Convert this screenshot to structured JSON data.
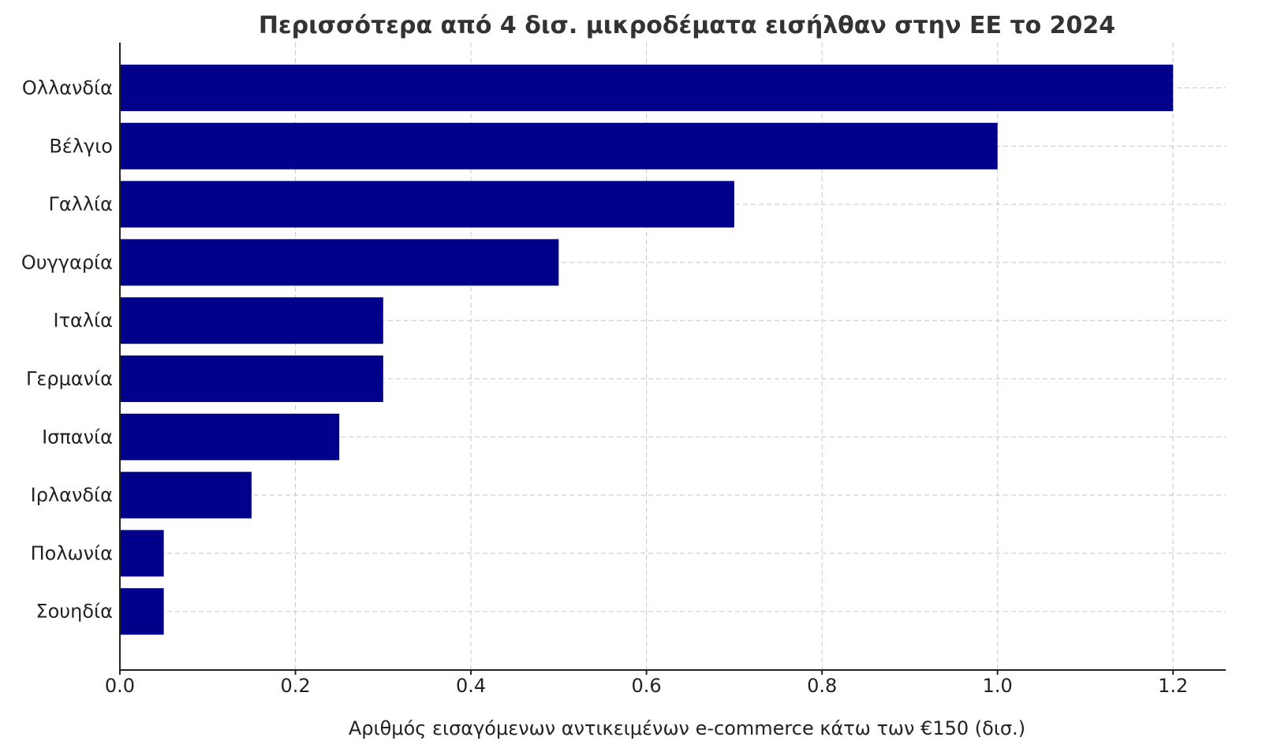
{
  "chart_data": {
    "type": "bar",
    "orientation": "horizontal",
    "title": "Περισσότερα από 4 δισ. μικροδέματα εισήλθαν στην ΕΕ το 2024",
    "xlabel": "Αριθμός εισαγόμενων αντικειμένων e-commerce κάτω των €150 (δισ.)",
    "ylabel": "",
    "categories": [
      "Ολλανδία",
      "Βέλγιο",
      "Γαλλία",
      "Ουγγαρία",
      "Ιταλία",
      "Γερμανία",
      "Ισπανία",
      "Ιρλανδία",
      "Πολωνία",
      "Σουηδία"
    ],
    "values": [
      1.2,
      1.0,
      0.7,
      0.5,
      0.3,
      0.3,
      0.25,
      0.15,
      0.05,
      0.05
    ],
    "xlim": [
      0,
      1.26
    ],
    "xticks": [
      0.0,
      0.2,
      0.4,
      0.6,
      0.8,
      1.0,
      1.2
    ],
    "xtick_labels": [
      "0.0",
      "0.2",
      "0.4",
      "0.6",
      "0.8",
      "1.0",
      "1.2"
    ],
    "grid": true,
    "bar_color": "#00008b"
  }
}
